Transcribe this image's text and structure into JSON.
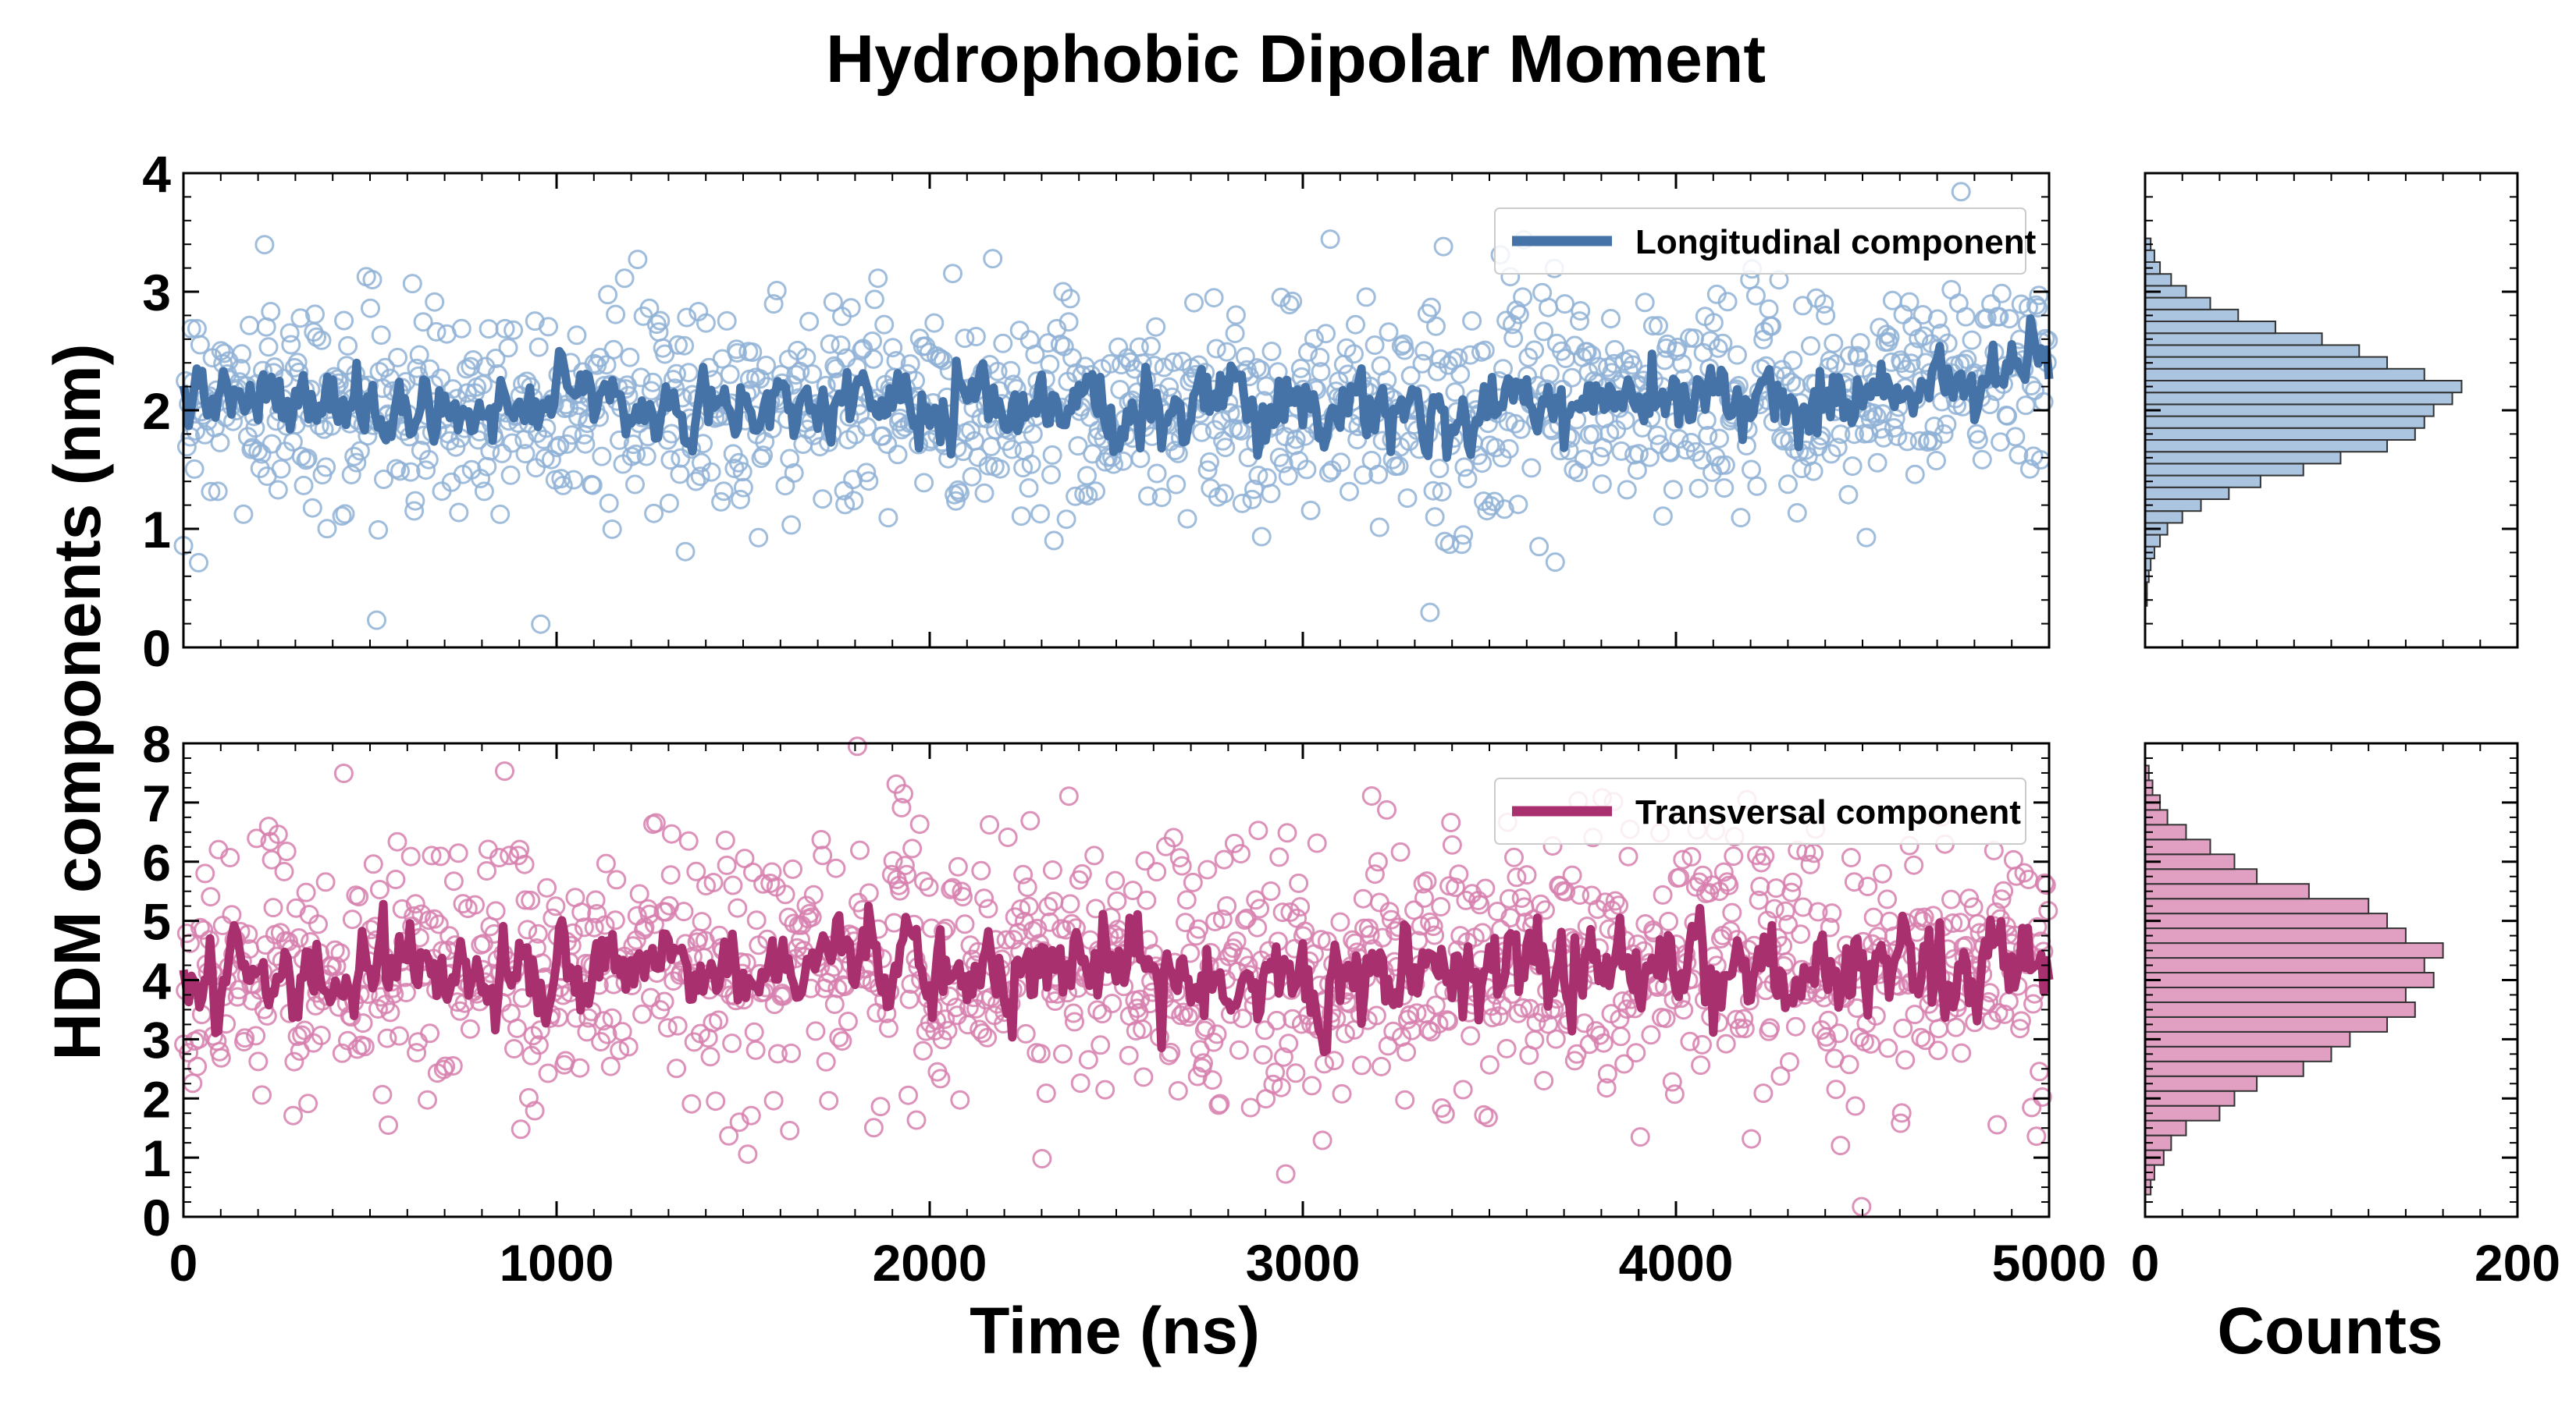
{
  "chart_data": {
    "title": "Hydrophobic Dipolar Moment",
    "ylabel": "HDM components (nm)",
    "xlabel": "Time (ns)",
    "hist_xlabel": "Counts",
    "x_ticks": [
      "0",
      "1000",
      "2000",
      "3000",
      "4000",
      "5000"
    ],
    "hist_x_ticks": [
      "0",
      "200"
    ],
    "colors": {
      "longitudinal": "#4572a7",
      "longitudinal_light": "#8fb1d6",
      "transversal": "#a8306f",
      "transversal_light": "#d77fae"
    },
    "panels": [
      {
        "id": "longitudinal",
        "type": "scatter",
        "series_name": "Longitudinal component",
        "legend_position": "upper-right",
        "xlim": [
          0,
          5000
        ],
        "ylim": [
          0,
          4
        ],
        "y_ticks": [
          "0",
          "1",
          "2",
          "3",
          "4"
        ],
        "mean": 2.05,
        "spread": 0.45,
        "n_points": 1250,
        "running_average_x": [
          0,
          250,
          500,
          750,
          1000,
          1250,
          1500,
          1750,
          2000,
          2250,
          2500,
          2750,
          3000,
          3250,
          3500,
          3750,
          4000,
          4250,
          4500,
          4750,
          5000
        ],
        "running_average_y": [
          2.1,
          2.05,
          2.05,
          2.0,
          2.1,
          2.0,
          2.05,
          2.1,
          2.0,
          2.05,
          2.0,
          2.05,
          2.0,
          2.05,
          2.0,
          2.1,
          2.05,
          2.1,
          2.1,
          2.3,
          2.3
        ],
        "hist_xlim": [
          0,
          200
        ],
        "hist_bin_centers": [
          0.3,
          0.4,
          0.5,
          0.6,
          0.7,
          0.8,
          0.9,
          1.0,
          1.1,
          1.2,
          1.3,
          1.4,
          1.5,
          1.6,
          1.7,
          1.8,
          1.9,
          2.0,
          2.1,
          2.2,
          2.3,
          2.4,
          2.5,
          2.6,
          2.7,
          2.8,
          2.9,
          3.0,
          3.1,
          3.2,
          3.3,
          3.4
        ],
        "hist_counts": [
          0,
          1,
          1,
          2,
          3,
          5,
          8,
          12,
          20,
          30,
          45,
          62,
          85,
          105,
          130,
          145,
          150,
          155,
          165,
          170,
          150,
          130,
          115,
          95,
          70,
          50,
          35,
          22,
          14,
          8,
          5,
          3
        ]
      },
      {
        "id": "transversal",
        "type": "scatter",
        "series_name": "Transversal component",
        "legend_position": "upper-right",
        "xlim": [
          0,
          5000
        ],
        "ylim": [
          0,
          8
        ],
        "y_ticks": [
          "0",
          "1",
          "2",
          "3",
          "4",
          "5",
          "6",
          "7",
          "8"
        ],
        "mean": 4.2,
        "spread": 1.1,
        "n_points": 1250,
        "running_average_x": [
          0,
          250,
          500,
          750,
          1000,
          1250,
          1500,
          1750,
          2000,
          2250,
          2500,
          2750,
          3000,
          3250,
          3500,
          3750,
          4000,
          4250,
          4500,
          4750,
          5000
        ],
        "running_average_y": [
          4.0,
          4.2,
          4.1,
          4.3,
          3.9,
          4.3,
          4.2,
          4.4,
          4.3,
          4.1,
          4.3,
          4.2,
          4.0,
          4.2,
          4.1,
          4.4,
          4.3,
          4.2,
          4.1,
          4.2,
          4.2
        ],
        "hist_xlim": [
          0,
          200
        ],
        "hist_bin_centers": [
          0.5,
          0.75,
          1.0,
          1.25,
          1.5,
          1.75,
          2.0,
          2.25,
          2.5,
          2.75,
          3.0,
          3.25,
          3.5,
          3.75,
          4.0,
          4.25,
          4.5,
          4.75,
          5.0,
          5.25,
          5.5,
          5.75,
          6.0,
          6.25,
          6.5,
          6.75,
          7.0,
          7.25,
          7.5
        ],
        "hist_counts": [
          3,
          5,
          10,
          14,
          22,
          40,
          48,
          60,
          85,
          100,
          110,
          130,
          145,
          140,
          155,
          150,
          160,
          140,
          130,
          120,
          88,
          60,
          48,
          35,
          22,
          12,
          8,
          4,
          2
        ]
      }
    ]
  }
}
